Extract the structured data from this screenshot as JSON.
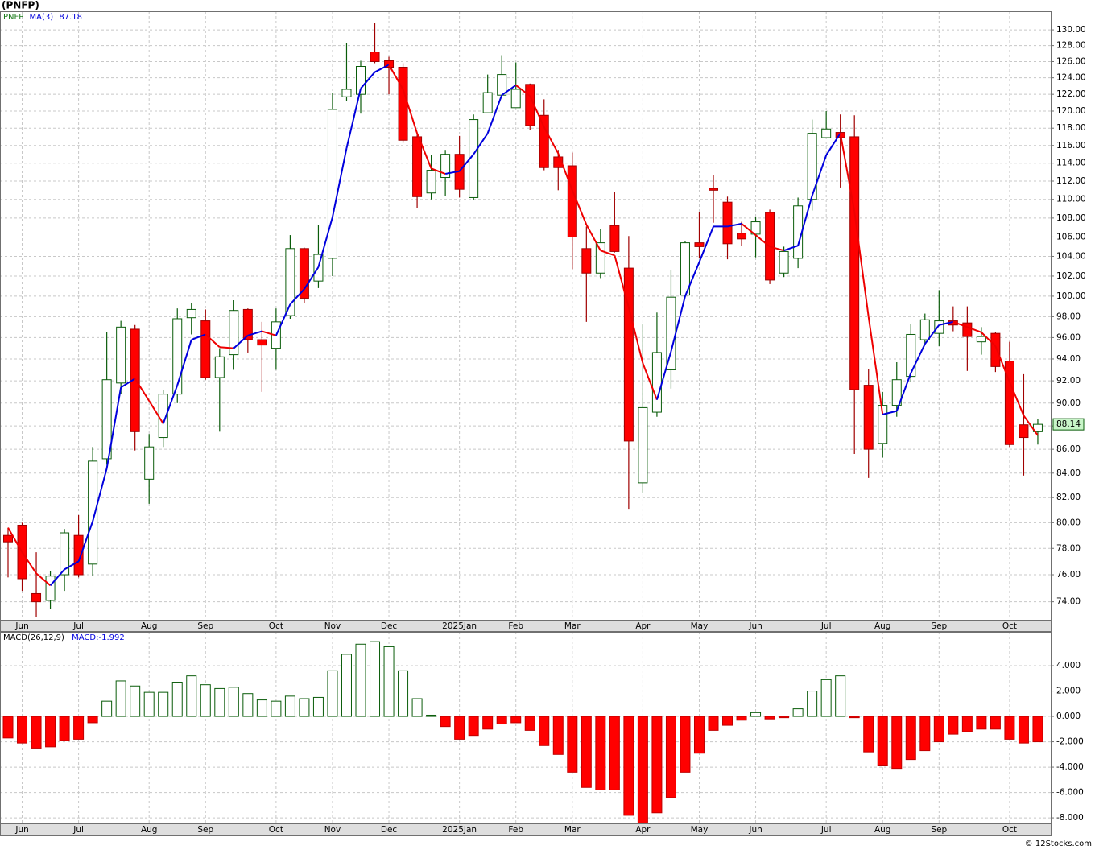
{
  "chart_data": [
    {
      "type": "candlestick",
      "title": "(PNFP)",
      "symbol": "PNFP",
      "ma_name": "MA(3)",
      "categories": [
        null,
        "Jun",
        null,
        null,
        null,
        "Jul",
        null,
        null,
        null,
        null,
        "Aug",
        null,
        null,
        null,
        "Sep",
        null,
        null,
        null,
        null,
        "Oct",
        null,
        null,
        null,
        "Nov",
        null,
        null,
        null,
        "Dec",
        null,
        null,
        null,
        null,
        "2025Jan",
        null,
        null,
        null,
        "Feb",
        null,
        null,
        null,
        "Mar",
        null,
        null,
        null,
        null,
        "Apr",
        null,
        null,
        null,
        "May",
        null,
        null,
        null,
        "Jun",
        null,
        null,
        null,
        null,
        "Jul",
        null,
        null,
        null,
        "Aug",
        null,
        null,
        null,
        "Sep",
        null,
        null,
        null,
        null,
        "Oct",
        null,
        null
      ],
      "open": [
        79.0,
        79.8,
        74.6,
        74.1,
        76.0,
        79.0,
        76.8,
        85.2,
        91.8,
        96.8,
        83.5,
        87.0,
        90.8,
        97.9,
        97.6,
        92.3,
        94.4,
        98.7,
        95.8,
        95.0,
        98.1,
        104.8,
        101.5,
        103.8,
        121.7,
        122.0,
        127.2,
        126.1,
        125.3,
        117.0,
        110.7,
        112.4,
        115.0,
        110.2,
        119.8,
        121.9,
        120.4,
        123.2,
        119.5,
        114.7,
        113.7,
        104.8,
        102.3,
        107.2,
        102.8,
        83.2,
        89.2,
        93.0,
        100.1,
        105.4,
        111.2,
        109.7,
        106.4,
        106.3,
        108.6,
        102.3,
        103.8,
        110.0,
        116.9,
        117.5,
        117.0,
        91.6,
        86.5,
        89.8,
        92.4,
        95.8,
        96.4,
        97.6,
        97.4,
        95.6,
        96.4,
        93.8,
        88.1,
        87.5
      ],
      "high": [
        79.6,
        80.0,
        77.7,
        76.3,
        79.5,
        80.6,
        86.2,
        96.5,
        97.6,
        97.2,
        87.3,
        91.2,
        98.8,
        99.3,
        98.7,
        95.0,
        99.6,
        98.8,
        97.5,
        98.8,
        106.2,
        104.9,
        107.3,
        122.2,
        128.3,
        126.1,
        130.9,
        126.6,
        125.8,
        117.4,
        114.9,
        115.5,
        117.1,
        119.6,
        124.4,
        126.8,
        125.9,
        123.3,
        121.4,
        115.5,
        115.2,
        107.1,
        106.8,
        110.8,
        106.1,
        97.3,
        98.4,
        102.6,
        105.6,
        108.6,
        112.7,
        110.3,
        107.6,
        108.1,
        108.9,
        105.0,
        110.2,
        119.0,
        120.0,
        119.6,
        119.5,
        93.1,
        91.0,
        93.7,
        97.3,
        98.3,
        100.6,
        99.0,
        99.0,
        97.0,
        96.5,
        95.6,
        92.6,
        88.6
      ],
      "low": [
        75.8,
        74.8,
        72.9,
        73.5,
        74.8,
        75.8,
        75.9,
        84.7,
        90.8,
        85.9,
        81.5,
        86.2,
        90.0,
        96.3,
        92.1,
        87.5,
        93.0,
        94.6,
        91.0,
        93.0,
        97.8,
        99.3,
        100.8,
        102.0,
        121.2,
        119.7,
        125.8,
        122.0,
        116.3,
        109.1,
        110.0,
        110.4,
        110.2,
        109.9,
        119.8,
        121.5,
        120.4,
        117.8,
        113.2,
        111.0,
        102.7,
        97.5,
        101.8,
        104.4,
        81.1,
        82.4,
        88.8,
        91.3,
        99.9,
        103.8,
        107.5,
        103.7,
        105.1,
        103.9,
        101.2,
        101.9,
        102.8,
        108.8,
        116.9,
        111.3,
        85.6,
        83.6,
        85.3,
        88.8,
        91.9,
        95.4,
        95.2,
        96.6,
        92.9,
        94.4,
        92.8,
        86.2,
        83.8,
        86.4
      ],
      "close": [
        78.5,
        75.7,
        74.0,
        75.9,
        79.2,
        76.0,
        85.0,
        92.1,
        97.0,
        87.5,
        86.2,
        90.8,
        97.8,
        98.7,
        92.3,
        94.2,
        98.6,
        95.8,
        95.3,
        97.5,
        104.8,
        99.8,
        104.2,
        120.2,
        122.6,
        125.4,
        126.0,
        125.3,
        116.6,
        110.3,
        113.2,
        115.0,
        111.1,
        119.0,
        122.2,
        124.4,
        122.6,
        118.3,
        113.5,
        113.5,
        106.0,
        102.3,
        105.4,
        104.5,
        86.7,
        89.6,
        94.6,
        99.9,
        105.4,
        105.0,
        111.0,
        105.3,
        105.8,
        107.6,
        101.6,
        104.5,
        109.3,
        117.4,
        117.9,
        116.9,
        91.2,
        86.0,
        89.8,
        92.1,
        96.3,
        97.7,
        97.6,
        97.2,
        96.1,
        96.1,
        93.3,
        86.4,
        87.0,
        88.14
      ],
      "ma": [
        79.6,
        77.7,
        76.1,
        75.2,
        76.4,
        77.0,
        80.1,
        84.4,
        91.4,
        92.2,
        90.2,
        88.2,
        91.6,
        95.8,
        96.3,
        95.1,
        95.0,
        96.2,
        96.6,
        96.2,
        99.2,
        100.7,
        102.9,
        108.1,
        115.7,
        122.7,
        124.7,
        125.6,
        122.6,
        117.4,
        113.4,
        112.8,
        113.1,
        115.0,
        117.4,
        121.9,
        123.1,
        121.8,
        118.1,
        115.1,
        111.0,
        107.3,
        104.6,
        104.1,
        98.9,
        93.6,
        90.3,
        94.7,
        100.0,
        103.4,
        107.1,
        107.1,
        107.4,
        106.2,
        105.0,
        104.6,
        105.1,
        110.4,
        114.9,
        117.4,
        108.7,
        98.0,
        89.0,
        89.3,
        92.7,
        95.4,
        97.2,
        97.5,
        97.0,
        96.5,
        95.2,
        91.9,
        88.9,
        87.18
      ],
      "ylim": [
        72.7,
        132.4
      ],
      "log_scale": true,
      "grid": true,
      "yticks": [
        {
          "value": 74,
          "label": "74.00"
        },
        {
          "value": 76,
          "label": "76.00"
        },
        {
          "value": 78,
          "label": "78.00"
        },
        {
          "value": 80,
          "label": "80.00"
        },
        {
          "value": 82,
          "label": "82.00"
        },
        {
          "value": 84,
          "label": "84.00"
        },
        {
          "value": 86,
          "label": "86.00"
        },
        {
          "value": 88,
          "label": "88.00"
        },
        {
          "value": 90,
          "label": "90.00"
        },
        {
          "value": 92,
          "label": "92.00"
        },
        {
          "value": 94,
          "label": "94.00"
        },
        {
          "value": 96,
          "label": "96.00"
        },
        {
          "value": 98,
          "label": "98.00"
        },
        {
          "value": 100,
          "label": "100.00"
        },
        {
          "value": 102,
          "label": "102.00"
        },
        {
          "value": 104,
          "label": "104.00"
        },
        {
          "value": 106,
          "label": "106.00"
        },
        {
          "value": 108,
          "label": "108.00"
        },
        {
          "value": 110,
          "label": "110.00"
        },
        {
          "value": 112,
          "label": "112.00"
        },
        {
          "value": 114,
          "label": "114.00"
        },
        {
          "value": 116,
          "label": "116.00"
        },
        {
          "value": 118,
          "label": "118.00"
        },
        {
          "value": 120,
          "label": "120.00"
        },
        {
          "value": 122,
          "label": "122.00"
        },
        {
          "value": 124,
          "label": "124.00"
        },
        {
          "value": 126,
          "label": "126.00"
        },
        {
          "value": 128,
          "label": "128.00"
        },
        {
          "value": 130,
          "label": "130.00"
        }
      ],
      "up_color": "#0a5c0a",
      "down_color": "#ff0000",
      "ma_up_color": "#0000dd",
      "ma_down_color": "#ee0000",
      "symbol_color": "#1a7a1a",
      "last_box_color": "#c8f5c8"
    },
    {
      "type": "bar",
      "title": "MACD(26,12,9)",
      "value_name": "MACD:",
      "value": -1.992,
      "categories": [
        null,
        "Jun",
        null,
        null,
        null,
        "Jul",
        null,
        null,
        null,
        null,
        "Aug",
        null,
        null,
        null,
        "Sep",
        null,
        null,
        null,
        null,
        "Oct",
        null,
        null,
        null,
        "Nov",
        null,
        null,
        null,
        "Dec",
        null,
        null,
        null,
        null,
        "2025Jan",
        null,
        null,
        null,
        "Feb",
        null,
        null,
        null,
        "Mar",
        null,
        null,
        null,
        null,
        "Apr",
        null,
        null,
        null,
        "May",
        null,
        null,
        null,
        "Jun",
        null,
        null,
        null,
        null,
        "Jul",
        null,
        null,
        null,
        "Aug",
        null,
        null,
        null,
        "Sep",
        null,
        null,
        null,
        null,
        "Oct",
        null,
        null
      ],
      "values": [
        -1.7,
        -2.1,
        -2.5,
        -2.4,
        -1.9,
        -1.8,
        -0.5,
        1.2,
        2.8,
        2.4,
        1.9,
        1.9,
        2.7,
        3.2,
        2.5,
        2.2,
        2.3,
        1.8,
        1.3,
        1.2,
        1.6,
        1.4,
        1.5,
        3.6,
        4.9,
        5.7,
        5.9,
        5.5,
        3.6,
        1.4,
        0.1,
        -0.8,
        -1.8,
        -1.5,
        -1.0,
        -0.6,
        -0.5,
        -1.1,
        -2.3,
        -3.0,
        -4.4,
        -5.6,
        -5.8,
        -5.8,
        -7.8,
        -8.4,
        -7.6,
        -6.4,
        -4.4,
        -2.9,
        -1.1,
        -0.7,
        -0.3,
        0.3,
        -0.2,
        -0.1,
        0.6,
        2.0,
        2.9,
        3.2,
        -0.1,
        -2.8,
        -3.9,
        -4.1,
        -3.4,
        -2.7,
        -2.0,
        -1.4,
        -1.2,
        -1.0,
        -1.0,
        -1.8,
        -2.1,
        -2.0
      ],
      "ylim": [
        -8.44,
        6.67
      ],
      "log_scale": false,
      "grid": true,
      "yticks": [
        {
          "value": -8,
          "label": "-8.000"
        },
        {
          "value": -6,
          "label": "-6.000"
        },
        {
          "value": -4,
          "label": "-4.000"
        },
        {
          "value": -2,
          "label": "-2.000"
        },
        {
          "value": 0,
          "label": "0.000"
        },
        {
          "value": 2,
          "label": "2.000"
        },
        {
          "value": 4,
          "label": "4.000"
        }
      ],
      "up_color": "#0a5c0a",
      "down_color": "#ff0000",
      "value_color": "#0000dd"
    }
  ],
  "footer": "© 12Stocks.com"
}
